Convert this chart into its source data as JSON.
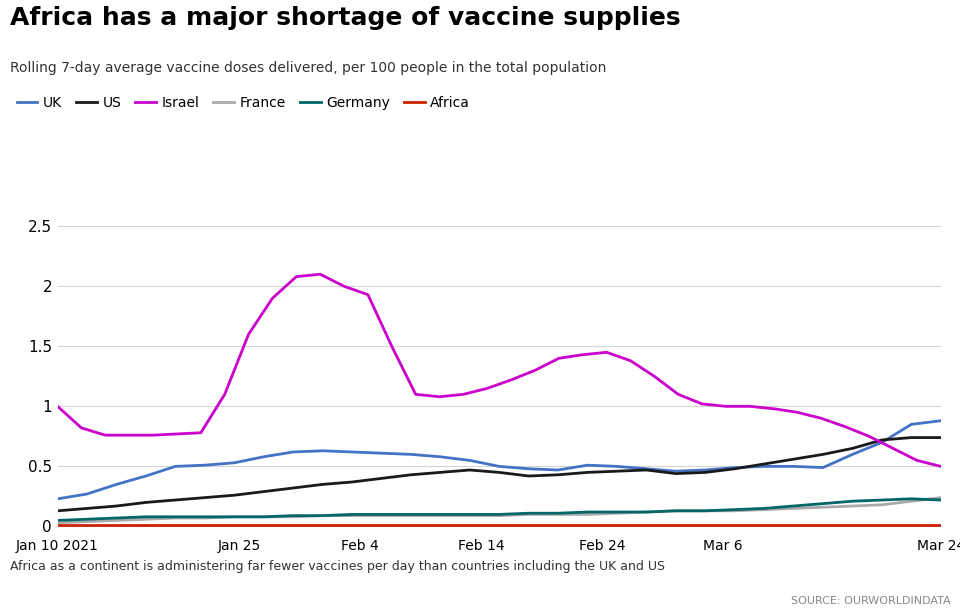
{
  "title": "Africa has a major shortage of vaccine supplies",
  "subtitle": "Rolling 7-day average vaccine doses delivered, per 100 people in the total population",
  "footnote": "Africa as a continent is administering far fewer vaccines per day than countries including the UK and US",
  "source": "SOURCE: OURWORLDINDATA",
  "ylim": [
    -0.05,
    2.6
  ],
  "yticks": [
    0,
    0.5,
    1.0,
    1.5,
    2.0,
    2.5
  ],
  "xtick_labels": [
    "Jan 10 2021",
    "Jan 25",
    "Feb 4",
    "Feb 14",
    "Feb 24",
    "Mar 6",
    "Mar 24"
  ],
  "tick_days": [
    0,
    15,
    25,
    35,
    45,
    55,
    73
  ],
  "total_days": 73,
  "series": {
    "UK": {
      "color": "#4472c4",
      "data": [
        0.23,
        0.27,
        0.35,
        0.42,
        0.5,
        0.51,
        0.53,
        0.58,
        0.62,
        0.63,
        0.62,
        0.61,
        0.6,
        0.58,
        0.55,
        0.5,
        0.48,
        0.47,
        0.51,
        0.5,
        0.48,
        0.46,
        0.47,
        0.49,
        0.5,
        0.5,
        0.49,
        0.6,
        0.7,
        0.85,
        0.88
      ]
    },
    "US": {
      "color": "#1a1a1a",
      "data": [
        0.13,
        0.15,
        0.17,
        0.2,
        0.22,
        0.24,
        0.26,
        0.29,
        0.32,
        0.35,
        0.37,
        0.4,
        0.43,
        0.45,
        0.47,
        0.45,
        0.42,
        0.43,
        0.45,
        0.46,
        0.47,
        0.44,
        0.45,
        0.48,
        0.52,
        0.56,
        0.6,
        0.65,
        0.72,
        0.74,
        0.74
      ]
    },
    "Israel": {
      "color": "#cc00cc",
      "data": [
        1.0,
        0.82,
        0.76,
        0.76,
        0.76,
        0.77,
        0.78,
        1.1,
        1.6,
        1.9,
        2.08,
        2.1,
        2.0,
        1.93,
        1.5,
        1.1,
        1.08,
        1.1,
        1.15,
        1.22,
        1.3,
        1.4,
        1.43,
        1.45,
        1.38,
        1.25,
        1.1,
        1.02,
        1.0,
        1.0,
        0.98,
        0.95,
        0.9,
        0.83,
        0.75,
        0.65,
        0.55,
        0.5
      ]
    },
    "France": {
      "color": "#aaaaaa",
      "data": [
        0.03,
        0.04,
        0.05,
        0.06,
        0.07,
        0.07,
        0.08,
        0.08,
        0.08,
        0.09,
        0.09,
        0.09,
        0.09,
        0.09,
        0.09,
        0.09,
        0.1,
        0.1,
        0.1,
        0.11,
        0.12,
        0.13,
        0.13,
        0.13,
        0.14,
        0.15,
        0.16,
        0.17,
        0.18,
        0.21,
        0.24
      ]
    },
    "Germany": {
      "color": "#006666",
      "data": [
        0.05,
        0.06,
        0.07,
        0.08,
        0.08,
        0.08,
        0.08,
        0.08,
        0.09,
        0.09,
        0.1,
        0.1,
        0.1,
        0.1,
        0.1,
        0.1,
        0.11,
        0.11,
        0.12,
        0.12,
        0.12,
        0.13,
        0.13,
        0.14,
        0.15,
        0.17,
        0.19,
        0.21,
        0.22,
        0.23,
        0.22
      ]
    },
    "Africa": {
      "color": "#cc2200",
      "data": [
        0.01,
        0.01,
        0.01,
        0.01,
        0.01,
        0.01,
        0.01,
        0.01,
        0.01,
        0.01,
        0.01,
        0.01,
        0.01,
        0.01,
        0.01,
        0.01,
        0.01,
        0.01,
        0.01,
        0.01,
        0.01,
        0.01,
        0.01,
        0.01,
        0.01,
        0.01,
        0.01,
        0.01,
        0.01,
        0.01,
        0.01
      ]
    }
  },
  "legend_entries": [
    "UK",
    "US",
    "Israel",
    "France",
    "Germany",
    "Africa"
  ],
  "legend_colors": [
    "#4472c4",
    "#1a1a1a",
    "#cc00cc",
    "#aaaaaa",
    "#006666",
    "#cc2200"
  ]
}
